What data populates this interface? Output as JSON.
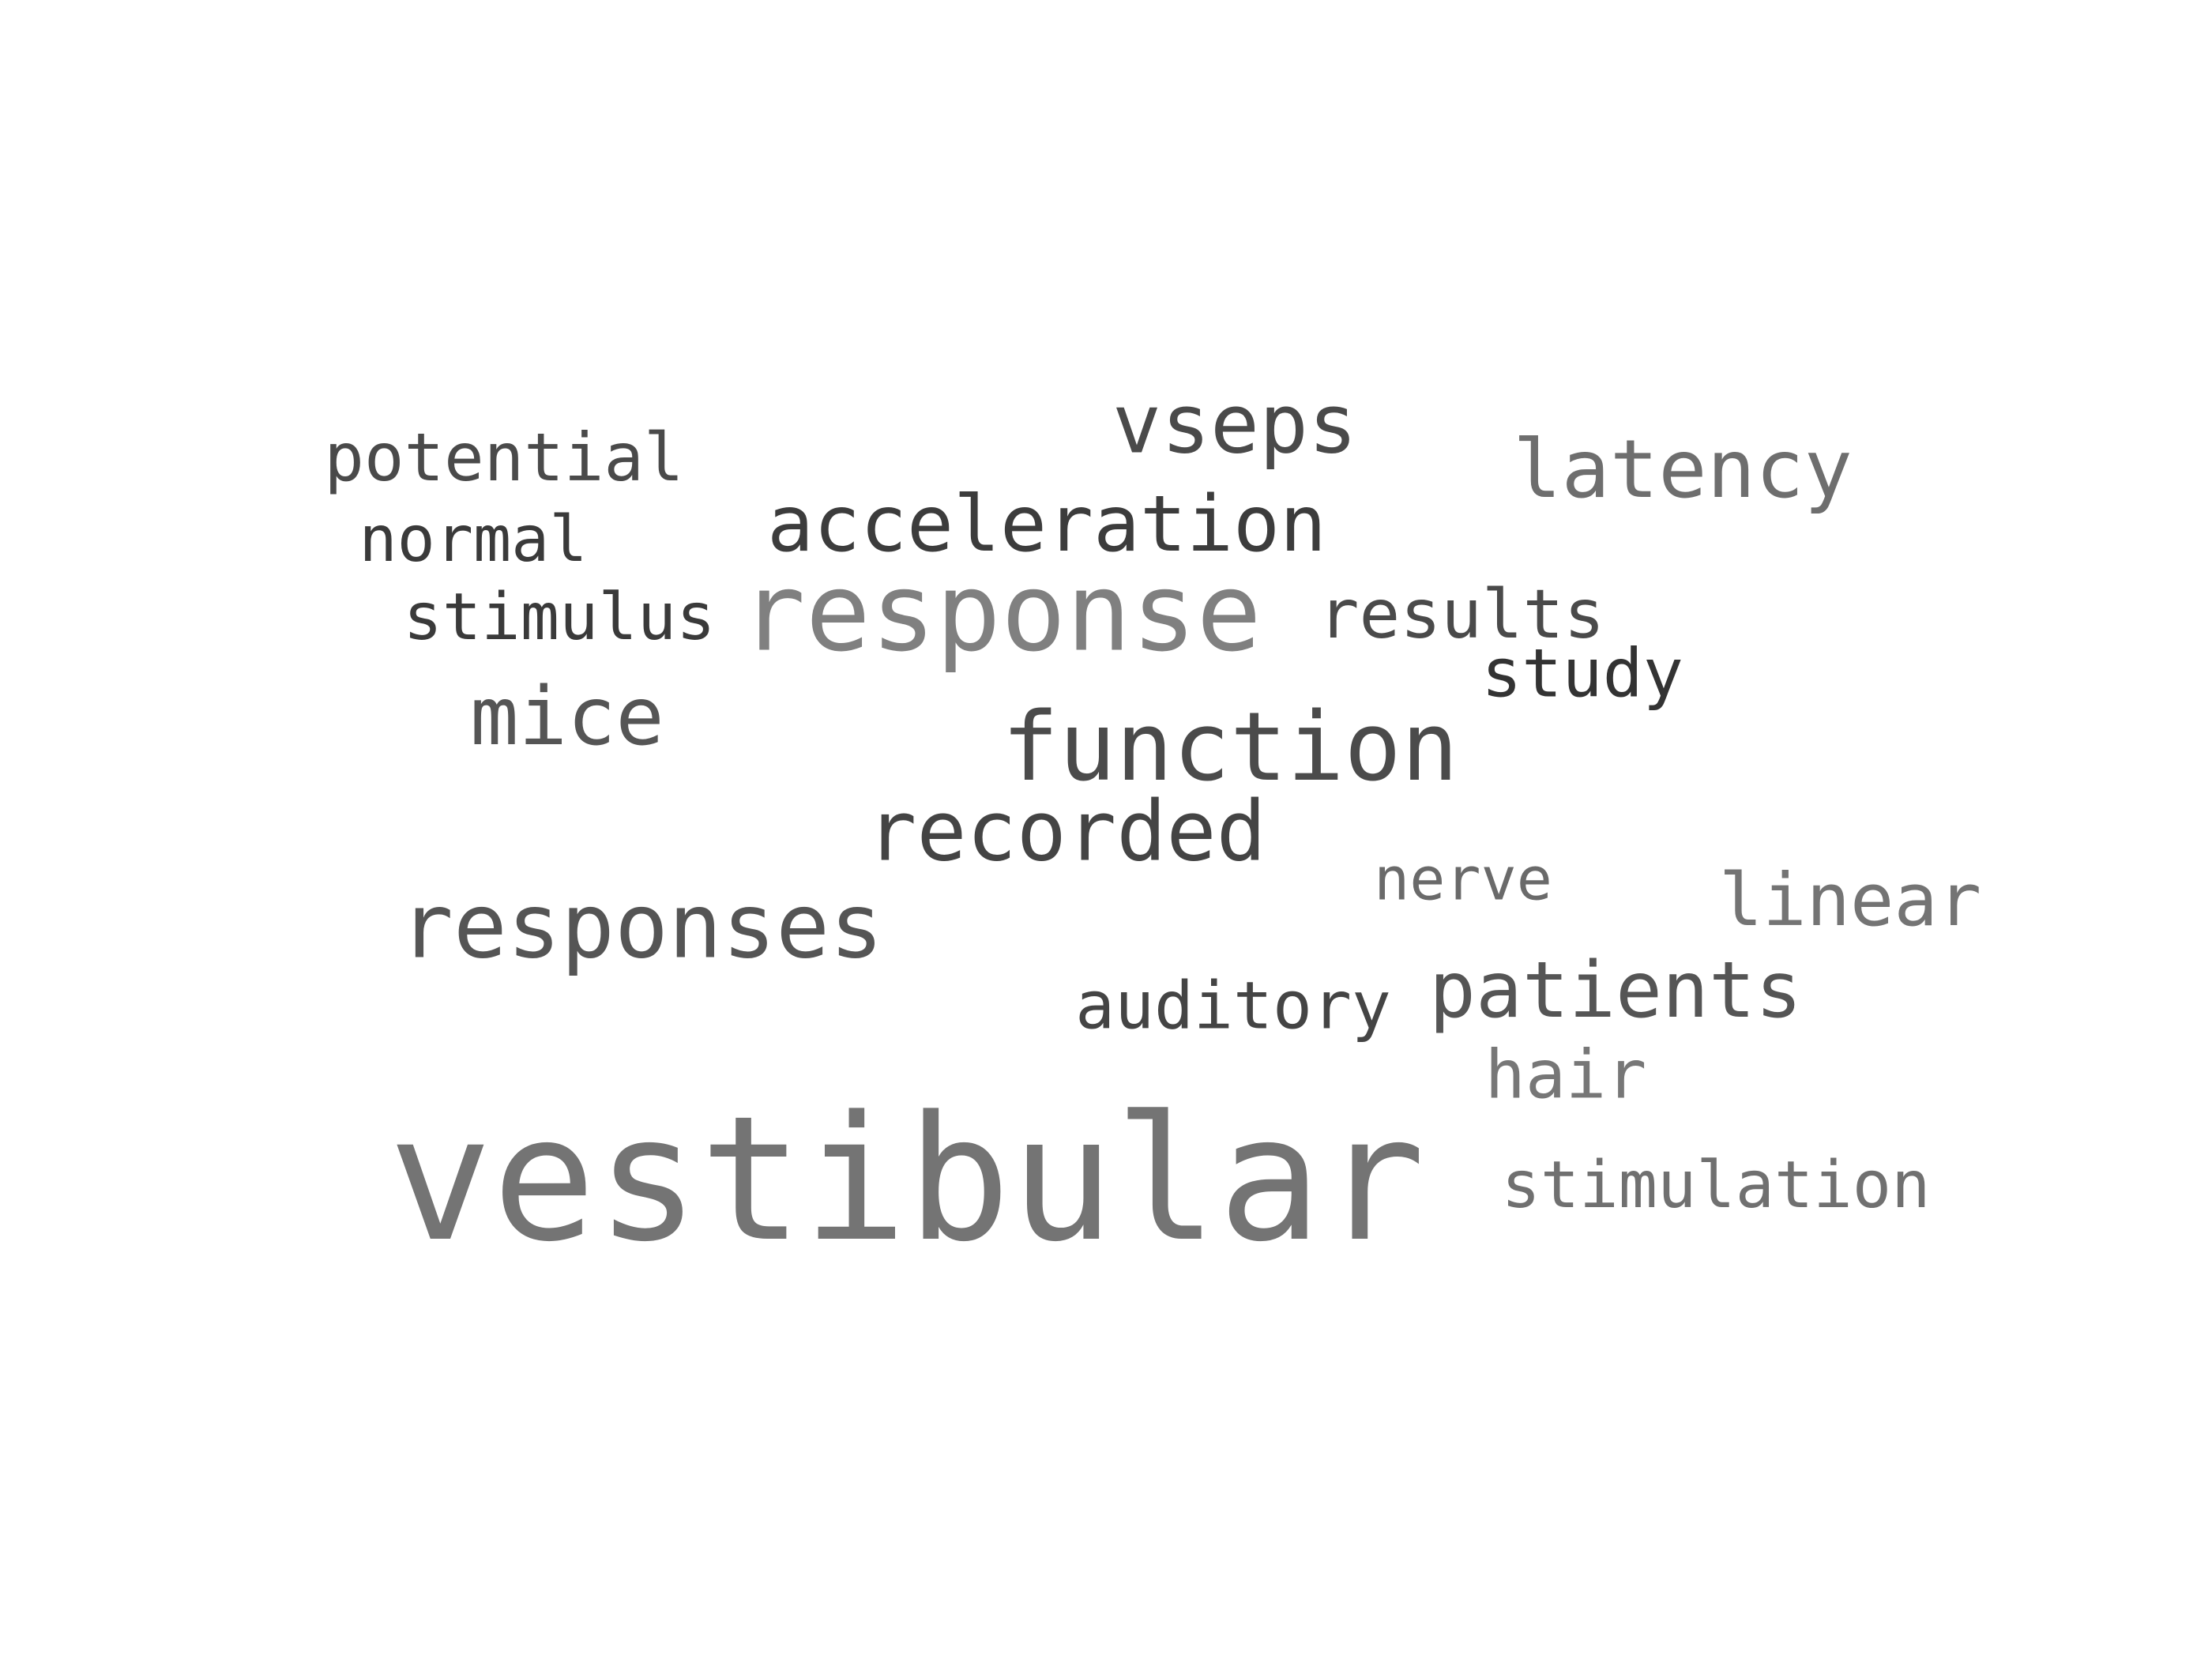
{
  "words": [
    {
      "text": "vestibular",
      "color": "#747474"
    },
    {
      "text": "response",
      "color": "#808080"
    },
    {
      "text": "function",
      "color": "#4b4b4b"
    },
    {
      "text": "responses",
      "color": "#555555"
    },
    {
      "text": "recorded",
      "color": "#444444"
    },
    {
      "text": "acceleration",
      "color": "#3c3c3c"
    },
    {
      "text": "vseps",
      "color": "#4a4a4a"
    },
    {
      "text": "latency",
      "color": "#6e6e6e"
    },
    {
      "text": "mice",
      "color": "#555555"
    },
    {
      "text": "patients",
      "color": "#555555"
    },
    {
      "text": "results",
      "color": "#4a4a4a"
    },
    {
      "text": "stimulation",
      "color": "#707070"
    },
    {
      "text": "linear",
      "color": "#747474"
    },
    {
      "text": "hair",
      "color": "#777777"
    },
    {
      "text": "study",
      "color": "#333333"
    },
    {
      "text": "auditory",
      "color": "#444444"
    },
    {
      "text": "potential",
      "color": "#4a4a4a"
    },
    {
      "text": "stimulus",
      "color": "#3a3a3a"
    },
    {
      "text": "normal",
      "color": "#3a3a3a"
    },
    {
      "text": "nerve",
      "color": "#6a6a6a"
    }
  ]
}
